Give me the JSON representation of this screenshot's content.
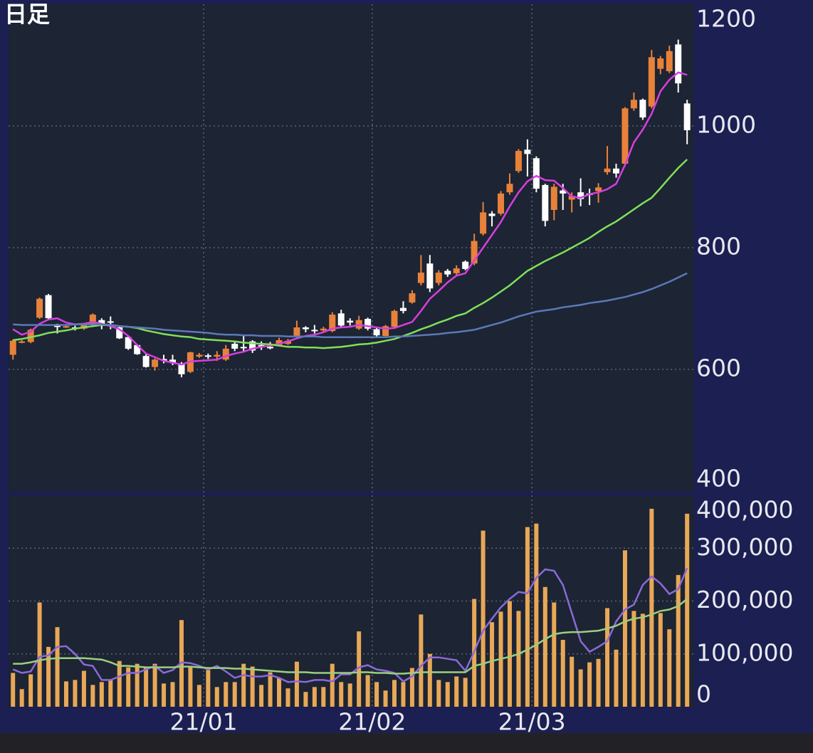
{
  "chart_data": {
    "type": "candlestick",
    "title": "日足",
    "categories": [
      null,
      null,
      null,
      null,
      null,
      null,
      null,
      null,
      null,
      null,
      null,
      null,
      null,
      null,
      null,
      null,
      null,
      null,
      null,
      null,
      null,
      null,
      "21/01",
      null,
      null,
      null,
      null,
      null,
      null,
      null,
      null,
      null,
      null,
      null,
      null,
      null,
      null,
      null,
      null,
      null,
      null,
      "21/02",
      null,
      null,
      null,
      null,
      null,
      null,
      null,
      null,
      null,
      null,
      null,
      null,
      null,
      null,
      null,
      null,
      null,
      "21/03",
      null,
      null,
      null,
      null,
      null,
      null,
      null,
      null,
      null,
      null,
      null,
      null,
      null,
      null,
      null,
      null,
      null
    ],
    "open": [
      624,
      644,
      645,
      685,
      722,
      672,
      670,
      669,
      667,
      675,
      681,
      679,
      669,
      653,
      640,
      622,
      604,
      617,
      616,
      610,
      596,
      621,
      623,
      621,
      616,
      642,
      637,
      646,
      640,
      637,
      640,
      642,
      655,
      669,
      665,
      664,
      663,
      692,
      680,
      667,
      683,
      666,
      655,
      670,
      701,
      710,
      742,
      774,
      742,
      762,
      758,
      777,
      774,
      823,
      856,
      856,
      891,
      926,
      961,
      947,
      903,
      862,
      894,
      879,
      891,
      889,
      893,
      924,
      930,
      938,
      1029,
      1043,
      1032,
      1094,
      1090,
      1134,
      1037
    ],
    "high": [
      649,
      648,
      667,
      718,
      724,
      675,
      672,
      672,
      676,
      692,
      684,
      687,
      671,
      655,
      641,
      626,
      618,
      624,
      624,
      612,
      629,
      627,
      626,
      630,
      640,
      645,
      657,
      648,
      646,
      645,
      652,
      650,
      680,
      671,
      673,
      670,
      694,
      698,
      684,
      688,
      685,
      668,
      673,
      698,
      712,
      730,
      788,
      788,
      763,
      765,
      771,
      779,
      823,
      875,
      860,
      893,
      922,
      962,
      978,
      950,
      905,
      905,
      905,
      891,
      914,
      897,
      906,
      967,
      938,
      1031,
      1055,
      1045,
      1125,
      1115,
      1132,
      1142,
      1043
    ],
    "low": [
      616,
      643,
      643,
      683,
      682,
      659,
      668,
      664,
      665,
      673,
      666,
      666,
      650,
      632,
      624,
      603,
      598,
      610,
      607,
      587,
      594,
      619,
      617,
      614,
      614,
      630,
      628,
      627,
      632,
      633,
      638,
      640,
      653,
      661,
      659,
      660,
      661,
      668,
      672,
      665,
      664,
      654,
      652,
      668,
      692,
      708,
      738,
      727,
      738,
      752,
      755,
      763,
      771,
      820,
      835,
      853,
      887,
      923,
      917,
      891,
      835,
      845,
      862,
      858,
      868,
      870,
      874,
      920,
      915,
      935,
      1025,
      1010,
      1029,
      1085,
      1087,
      1055,
      970
    ],
    "close": [
      647,
      646,
      665,
      716,
      684,
      670,
      671,
      667,
      674,
      690,
      675,
      677,
      651,
      634,
      625,
      604,
      616,
      615,
      611,
      592,
      628,
      624,
      622,
      624,
      634,
      634,
      636,
      631,
      639,
      635,
      648,
      647,
      669,
      666,
      663,
      667,
      690,
      672,
      677,
      681,
      667,
      656,
      671,
      696,
      696,
      725,
      759,
      733,
      759,
      756,
      766,
      765,
      811,
      858,
      852,
      889,
      905,
      959,
      954,
      897,
      844,
      900,
      889,
      885,
      880,
      888,
      899,
      930,
      922,
      1029,
      1043,
      1014,
      1113,
      1111,
      1123,
      1070,
      993
    ],
    "up_color": "#e8823a",
    "down_color": "#ffffff",
    "ylim": [
      400,
      1200
    ],
    "yticks": [
      400,
      600,
      800,
      1000,
      1200
    ],
    "grid": true,
    "lines": [
      {
        "color": "#d63fe0",
        "values": [
          666,
          657,
          662,
          675,
          682,
          684,
          677,
          674,
          675,
          678,
          675,
          671,
          666,
          655,
          640,
          626,
          620,
          614,
          611,
          608,
          613,
          614,
          615,
          616,
          622,
          626,
          629,
          634,
          637,
          639,
          642,
          646,
          651,
          655,
          657,
          661,
          667,
          669,
          670,
          673,
          671,
          669,
          667,
          668,
          673,
          678,
          696,
          716,
          729,
          743,
          754,
          758,
          779,
          800,
          821,
          842,
          868,
          891,
          909,
          918,
          911,
          910,
          898,
          884,
          882,
          888,
          891,
          896,
          905,
          936,
          973,
          994,
          1020,
          1057,
          1076,
          1088,
          1084
        ]
      },
      {
        "color": "#7fe05a",
        "values": [
          648,
          650,
          653,
          656,
          660,
          662,
          664,
          667,
          669,
          671,
          673,
          673,
          671,
          670,
          668,
          664,
          661,
          658,
          656,
          654,
          653,
          650,
          649,
          648,
          647,
          646,
          644,
          643,
          642,
          641,
          639,
          637,
          637,
          636,
          636,
          635,
          636,
          637,
          639,
          641,
          642,
          644,
          647,
          650,
          655,
          660,
          666,
          671,
          677,
          682,
          688,
          692,
          701,
          709,
          718,
          728,
          738,
          750,
          762,
          770,
          778,
          785,
          792,
          800,
          808,
          816,
          826,
          835,
          843,
          853,
          863,
          873,
          882,
          898,
          915,
          931,
          945
        ]
      },
      {
        "color": "#5b79b8",
        "values": [
          674,
          673,
          673,
          673,
          673,
          673,
          673,
          674,
          674,
          674,
          674,
          673,
          671,
          670,
          669,
          668,
          667,
          665,
          664,
          663,
          662,
          661,
          660,
          658,
          657,
          657,
          656,
          656,
          655,
          655,
          655,
          654,
          654,
          654,
          654,
          653,
          653,
          653,
          653,
          653,
          653,
          653,
          653,
          654,
          654,
          655,
          656,
          657,
          658,
          660,
          661,
          663,
          665,
          669,
          673,
          677,
          682,
          687,
          691,
          695,
          697,
          699,
          702,
          704,
          706,
          709,
          711,
          713,
          716,
          719,
          723,
          727,
          732,
          738,
          744,
          751,
          758
        ]
      }
    ],
    "volume": {
      "color": "#e8a857",
      "values": [
        64000,
        33300,
        61300,
        197300,
        113300,
        150600,
        48000,
        50700,
        68000,
        41300,
        46700,
        50700,
        86600,
        74600,
        81300,
        76000,
        81300,
        44000,
        46700,
        164000,
        74600,
        41300,
        69300,
        37300,
        46700,
        46700,
        81300,
        76000,
        41300,
        65300,
        54700,
        34700,
        85300,
        28000,
        37300,
        37300,
        81300,
        46700,
        44000,
        142600,
        60000,
        46700,
        30700,
        50700,
        46700,
        73300,
        174600,
        100000,
        50700,
        46700,
        57300,
        54700,
        204000,
        333300,
        160000,
        180000,
        200000,
        181300,
        340000,
        346600,
        226600,
        197300,
        126600,
        94600,
        70700,
        84000,
        90600,
        186600,
        108000,
        296000,
        181300,
        176000,
        374600,
        177300,
        146600,
        249300,
        365200
      ],
      "ylim": [
        0,
        400000
      ],
      "yticks": [
        0,
        {
          "value": 100000,
          "label": "100,000"
        },
        {
          "value": 200000,
          "label": "200,000"
        },
        {
          "value": 300000,
          "label": "300,000"
        },
        {
          "value": 400000,
          "label": "400,000"
        }
      ],
      "lines": [
        {
          "color": "#8a6ad8",
          "values": [
            70600,
            64000,
            66600,
            94600,
            97300,
            113300,
            114600,
            100000,
            80000,
            77300,
            50700,
            50700,
            57300,
            64000,
            64000,
            70600,
            77300,
            64000,
            69300,
            84000,
            82600,
            77300,
            70600,
            77300,
            66600,
            54700,
            60000,
            57300,
            57300,
            60000,
            54700,
            46700,
            48000,
            46700,
            50700,
            50700,
            48000,
            61300,
            61300,
            74600,
            78600,
            70600,
            68000,
            64000,
            48000,
            57300,
            77300,
            93300,
            93300,
            90600,
            88000,
            68000,
            104000,
            144000,
            166600,
            188000,
            204000,
            217300,
            214600,
            244000,
            260000,
            257300,
            230600,
            177300,
            124000,
            104000,
            113300,
            124000,
            161300,
            184000,
            193300,
            230600,
            246600,
            233300,
            213300,
            222600,
            262600
          ]
        },
        {
          "color": "#9ccf7f",
          "values": [
            81300,
            81300,
            84000,
            88000,
            90600,
            92000,
            92000,
            92000,
            92000,
            90600,
            89300,
            84000,
            77300,
            77300,
            76000,
            74600,
            74600,
            74600,
            74600,
            76000,
            76000,
            74600,
            73300,
            73300,
            73300,
            72000,
            72000,
            70600,
            69300,
            68000,
            66600,
            65300,
            65300,
            65300,
            64000,
            64000,
            64000,
            64000,
            64000,
            65300,
            65300,
            64000,
            64000,
            62600,
            62600,
            64000,
            65300,
            65300,
            65300,
            65300,
            65300,
            65300,
            77300,
            81300,
            86600,
            90600,
            94600,
            100000,
            108000,
            117300,
            128000,
            137300,
            140000,
            141300,
            141300,
            142600,
            144000,
            148000,
            153300,
            161300,
            166600,
            169300,
            174600,
            181300,
            184000,
            190600,
            204000
          ]
        }
      ]
    }
  }
}
